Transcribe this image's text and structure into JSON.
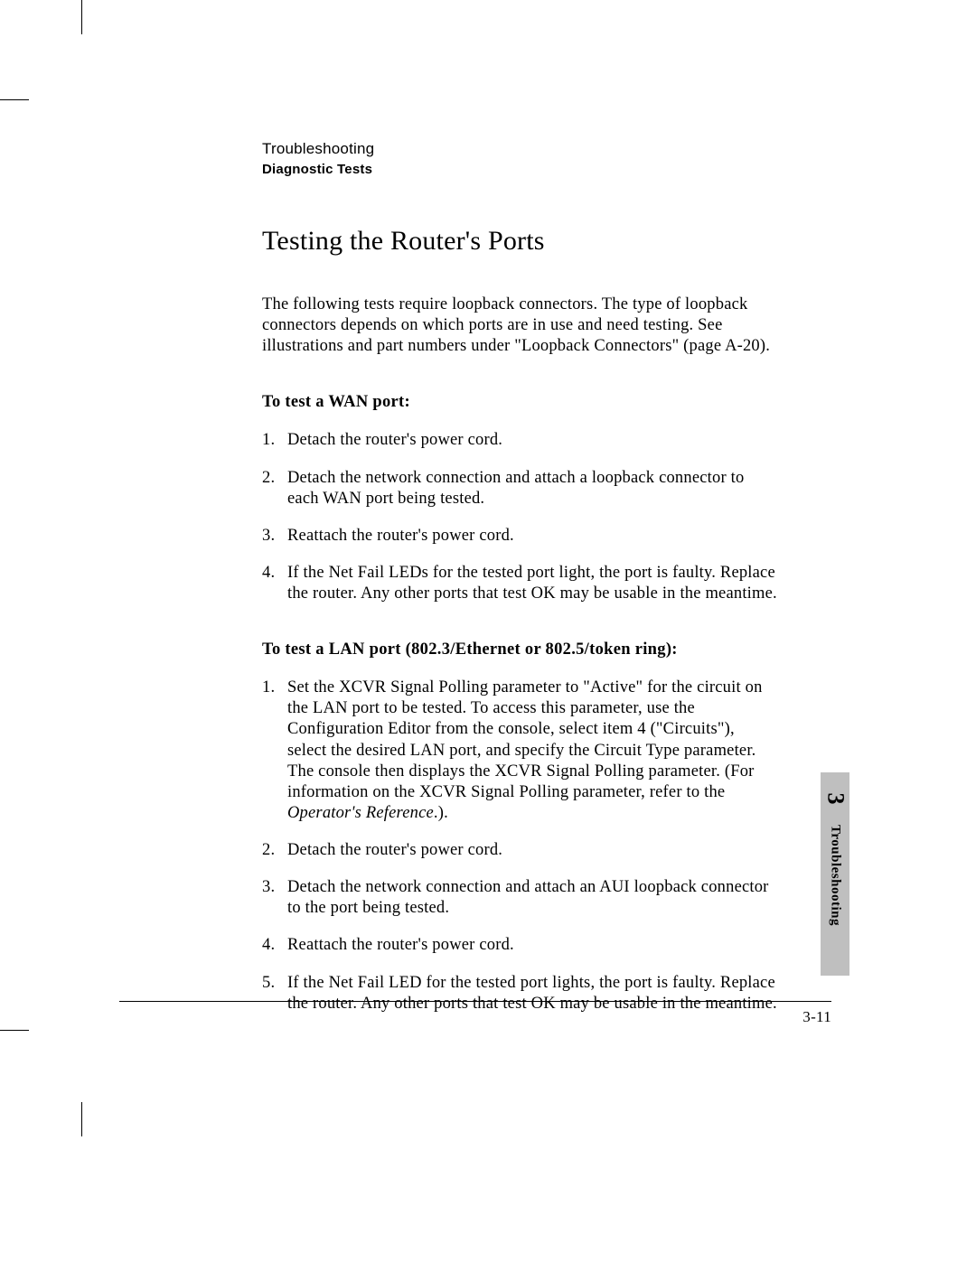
{
  "header": {
    "chapter": "Troubleshooting",
    "section": "Diagnostic Tests"
  },
  "title": "Testing the Router's Ports",
  "intro": "The following tests require loopback connectors. The type of loopback connectors depends on which ports are in use and need testing.  See illustrations and part numbers under \"Loopback Connectors\" (page A-20).",
  "wan": {
    "heading": "To test a WAN port:",
    "steps": [
      "Detach the router's power cord.",
      "Detach the network connection and attach a loopback connector to each WAN port being tested.",
      "Reattach the router's power cord.",
      "If the Net Fail LEDs for the tested port light, the port is faulty. Replace the router.  Any other ports that test OK may be usable in the meantime."
    ]
  },
  "lan": {
    "heading": "To test a LAN port (802.3/Ethernet or 802.5/token ring):",
    "steps": {
      "s1a": "Set the XCVR Signal Polling parameter to \"Active\" for the circuit on the LAN port to be tested.  To access this parameter, use the Configuration Editor from the console, select item 4 (\"Circuits\"), select the desired LAN port, and specify the Circuit Type parameter. The console then displays the XCVR Signal Polling parameter. (For information on the XCVR Signal Polling parameter, refer to the ",
      "s1_italic": "Operator's Reference",
      "s1b": ".).",
      "s2": "Detach the router's power cord.",
      "s3": "Detach the network connection and attach an AUI loopback connector to the port being tested.",
      "s4": "Reattach the router's power cord.",
      "s5": "If the Net Fail LED for the tested port lights, the port is faulty. Replace the router.  Any other ports that test OK may be usable in the meantime."
    }
  },
  "sidetab": {
    "num": "3",
    "label": "Troubleshooting"
  },
  "page_number": "3-11",
  "colors": {
    "text": "#000000",
    "background": "#ffffff",
    "tab_bg": "#bfbfbf"
  },
  "typography": {
    "body_family": "Times New Roman",
    "header_family": "Arial",
    "title_size_pt": 22,
    "body_size_pt": 14,
    "header_size_pt": 12
  },
  "nums": {
    "n1": "1.",
    "n2": "2.",
    "n3": "3.",
    "n4": "4.",
    "n5": "5."
  }
}
